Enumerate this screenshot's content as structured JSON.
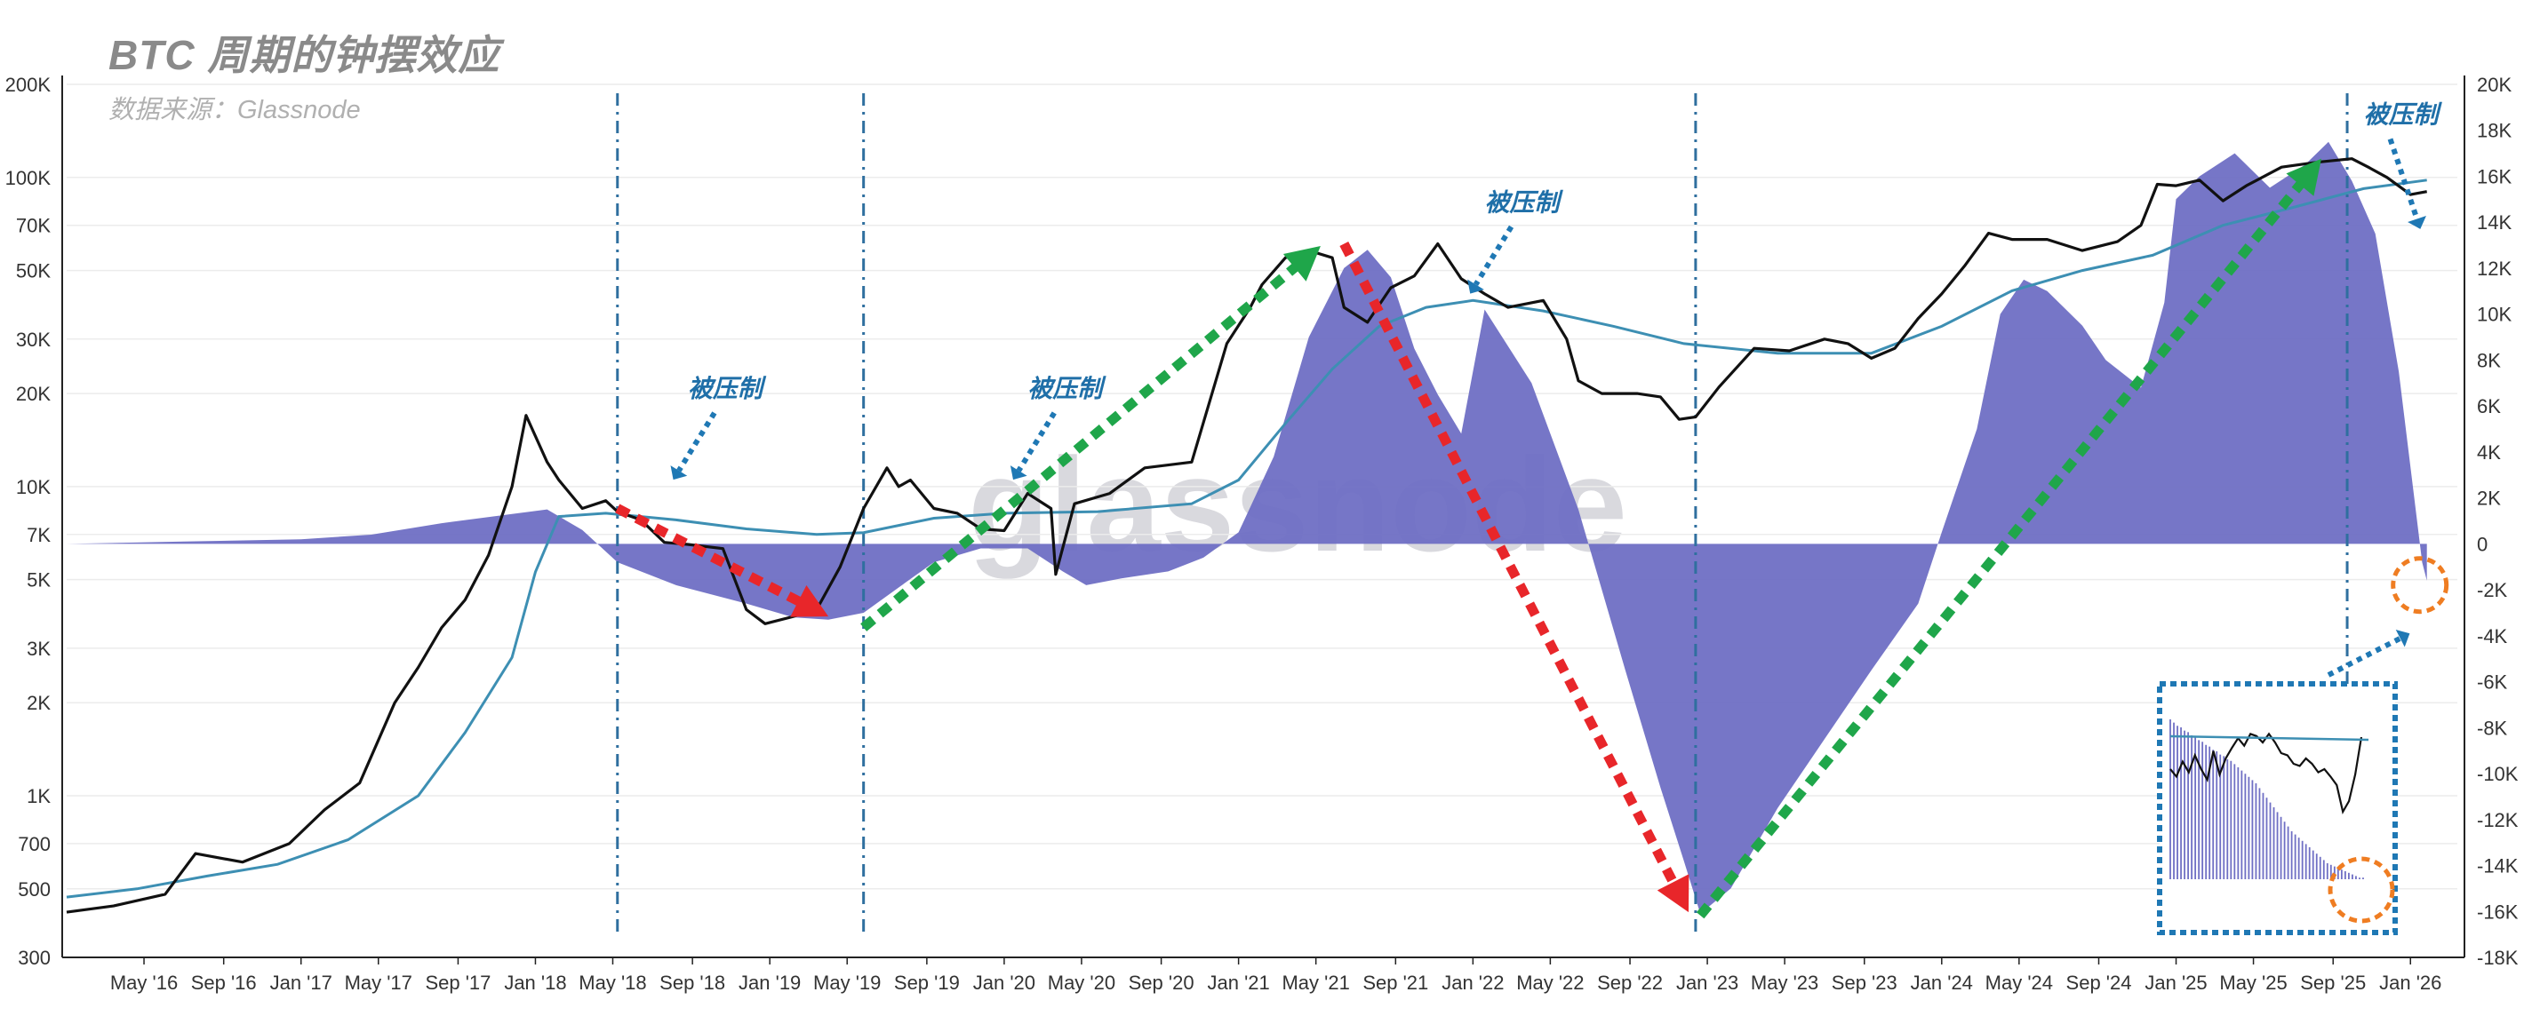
{
  "title": "BTC 周期的钟摆效应",
  "subtitle": "数据来源：Glassnode",
  "watermark": "glassnode",
  "colors": {
    "price_line": "#111111",
    "ma_line": "#3d8fb3",
    "area_fill": "#6f6fc4",
    "down_arrow": "#e8262a",
    "up_arrow": "#1fa64a",
    "annotation_arrow": "#1f78b4",
    "cycle_line": "#2f6f9f",
    "highlight_circle": "#ef7d22",
    "inset_border": "#1f78b4"
  },
  "chart_data": {
    "type": "line",
    "title": "",
    "left_axis": {
      "scale": "log",
      "range": [
        300,
        200000
      ],
      "ticks": [
        "300",
        "500",
        "700",
        "1K",
        "2K",
        "3K",
        "5K",
        "7K",
        "10K",
        "20K",
        "30K",
        "50K",
        "70K",
        "100K",
        "200K"
      ],
      "tick_values": [
        300,
        500,
        700,
        1000,
        2000,
        3000,
        5000,
        7000,
        10000,
        20000,
        30000,
        50000,
        70000,
        100000,
        200000
      ]
    },
    "right_axis": {
      "scale": "linear",
      "range": [
        -18000,
        20000
      ],
      "ticks": [
        "-18K",
        "-16K",
        "-14K",
        "-12K",
        "-10K",
        "-8K",
        "-6K",
        "-4K",
        "-2K",
        "0",
        "2K",
        "4K",
        "6K",
        "8K",
        "10K",
        "12K",
        "14K",
        "16K",
        "18K",
        "20K"
      ],
      "tick_values": [
        -18000,
        -16000,
        -14000,
        -12000,
        -10000,
        -8000,
        -6000,
        -4000,
        -2000,
        0,
        2000,
        4000,
        6000,
        8000,
        10000,
        12000,
        14000,
        16000,
        18000,
        20000
      ]
    },
    "x_axis": {
      "start": 2016.0,
      "end": 2026.2,
      "ticks": [
        "May '16",
        "Sep '16",
        "Jan '17",
        "May '17",
        "Sep '17",
        "Jan '18",
        "May '18",
        "Sep '18",
        "Jan '19",
        "May '19",
        "Sep '19",
        "Jan '20",
        "May '20",
        "Sep '20",
        "Jan '21",
        "May '21",
        "Sep '21",
        "Jan '22",
        "May '22",
        "Sep '22",
        "Jan '23",
        "May '23",
        "Sep '23",
        "Jan '24",
        "May '24",
        "Sep '24",
        "Jan '25",
        "May '25",
        "Sep '25",
        "Jan '26"
      ],
      "tick_values": [
        2016.33,
        2016.67,
        2017.0,
        2017.33,
        2017.67,
        2018.0,
        2018.33,
        2018.67,
        2019.0,
        2019.33,
        2019.67,
        2020.0,
        2020.33,
        2020.67,
        2021.0,
        2021.33,
        2021.67,
        2022.0,
        2022.33,
        2022.67,
        2023.0,
        2023.33,
        2023.67,
        2024.0,
        2024.33,
        2024.67,
        2025.0,
        2025.33,
        2025.67,
        2026.0
      ]
    },
    "series": [
      {
        "name": "",
        "axis": "left",
        "style": "price",
        "x": [
          2016.0,
          2016.2,
          2016.42,
          2016.55,
          2016.75,
          2016.95,
          2017.1,
          2017.25,
          2017.4,
          2017.5,
          2017.6,
          2017.7,
          2017.8,
          2017.9,
          2017.96,
          2018.05,
          2018.1,
          2018.2,
          2018.3,
          2018.35,
          2018.45,
          2018.55,
          2018.65,
          2018.8,
          2018.9,
          2018.98,
          2019.1,
          2019.2,
          2019.3,
          2019.4,
          2019.5,
          2019.55,
          2019.6,
          2019.7,
          2019.8,
          2019.9,
          2020.0,
          2020.1,
          2020.2,
          2020.22,
          2020.3,
          2020.45,
          2020.6,
          2020.8,
          2020.95,
          2021.05,
          2021.1,
          2021.2,
          2021.3,
          2021.4,
          2021.45,
          2021.55,
          2021.65,
          2021.75,
          2021.85,
          2021.95,
          2022.05,
          2022.15,
          2022.3,
          2022.4,
          2022.45,
          2022.55,
          2022.7,
          2022.8,
          2022.88,
          2022.95,
          2023.05,
          2023.2,
          2023.35,
          2023.5,
          2023.6,
          2023.7,
          2023.8,
          2023.9,
          2024.0,
          2024.1,
          2024.2,
          2024.3,
          2024.45,
          2024.6,
          2024.75,
          2024.85,
          2024.92,
          2025.0,
          2025.1,
          2025.2,
          2025.3,
          2025.45,
          2025.6,
          2025.75,
          2025.82,
          2025.9,
          2026.0,
          2026.07
        ],
        "y": [
          420,
          440,
          480,
          650,
          610,
          700,
          900,
          1100,
          2000,
          2600,
          3500,
          4300,
          6000,
          10000,
          17000,
          12000,
          10500,
          8500,
          9000,
          8300,
          7800,
          6600,
          6500,
          6300,
          4000,
          3600,
          3800,
          4000,
          5500,
          8500,
          11500,
          10000,
          10500,
          8500,
          8200,
          7300,
          7200,
          9500,
          8500,
          5200,
          8800,
          9500,
          11500,
          12000,
          29000,
          38000,
          45000,
          55000,
          58000,
          55000,
          38000,
          34000,
          44000,
          48000,
          61000,
          47000,
          42000,
          38000,
          40000,
          30000,
          22000,
          20000,
          20000,
          19500,
          16500,
          16800,
          21000,
          28000,
          27500,
          30000,
          29000,
          26000,
          28000,
          35000,
          42000,
          52000,
          66000,
          63000,
          63000,
          58000,
          62000,
          70000,
          95000,
          94000,
          98000,
          84000,
          94000,
          108000,
          112000,
          115000,
          108000,
          100000,
          88000,
          90000
        ]
      },
      {
        "name": "",
        "axis": "left",
        "style": "ma",
        "x": [
          2016.0,
          2016.3,
          2016.6,
          2016.9,
          2017.2,
          2017.5,
          2017.7,
          2017.9,
          2018.0,
          2018.1,
          2018.3,
          2018.6,
          2018.9,
          2019.2,
          2019.4,
          2019.7,
          2020.0,
          2020.4,
          2020.8,
          2021.0,
          2021.2,
          2021.4,
          2021.6,
          2021.8,
          2022.0,
          2022.3,
          2022.6,
          2022.9,
          2023.3,
          2023.7,
          2024.0,
          2024.3,
          2024.6,
          2024.9,
          2025.2,
          2025.5,
          2025.8,
          2026.07
        ],
        "y": [
          470,
          500,
          550,
          600,
          720,
          1000,
          1600,
          2800,
          5300,
          8000,
          8200,
          7800,
          7300,
          7000,
          7100,
          7900,
          8200,
          8300,
          8800,
          10500,
          16000,
          24000,
          33000,
          38000,
          40000,
          37000,
          33000,
          29000,
          27000,
          27000,
          33000,
          43000,
          50000,
          56000,
          70000,
          80000,
          92000,
          98000
        ]
      },
      {
        "name": "",
        "axis": "right",
        "style": "area",
        "x": [
          2016.0,
          2016.5,
          2017.0,
          2017.3,
          2017.6,
          2017.9,
          2018.05,
          2018.2,
          2018.35,
          2018.6,
          2018.9,
          2019.1,
          2019.25,
          2019.4,
          2019.55,
          2019.7,
          2019.9,
          2020.1,
          2020.25,
          2020.35,
          2020.5,
          2020.7,
          2020.85,
          2021.0,
          2021.15,
          2021.3,
          2021.45,
          2021.55,
          2021.65,
          2021.75,
          2021.85,
          2021.95,
          2022.05,
          2022.25,
          2022.45,
          2022.65,
          2022.8,
          2022.9,
          2022.97,
          2023.1,
          2023.3,
          2023.5,
          2023.7,
          2023.9,
          2024.0,
          2024.15,
          2024.25,
          2024.35,
          2024.45,
          2024.6,
          2024.7,
          2024.8,
          2024.85,
          2024.95,
          2025.0,
          2025.1,
          2025.25,
          2025.4,
          2025.55,
          2025.65,
          2025.75,
          2025.85,
          2025.95,
          2026.05,
          2026.07
        ],
        "y": [
          0,
          100,
          200,
          400,
          900,
          1300,
          1500,
          600,
          -800,
          -1800,
          -2600,
          -3200,
          -3300,
          -3000,
          -1900,
          -800,
          -200,
          -200,
          -1200,
          -1800,
          -1500,
          -1200,
          -600,
          500,
          3800,
          9000,
          12000,
          12800,
          11600,
          8500,
          6500,
          4800,
          10200,
          7000,
          1500,
          -5500,
          -10600,
          -13800,
          -16100,
          -15000,
          -11500,
          -8500,
          -5500,
          -2600,
          500,
          5000,
          10000,
          11500,
          11000,
          9500,
          8000,
          7200,
          6800,
          10500,
          15000,
          16000,
          17000,
          15500,
          16500,
          17500,
          15800,
          13500,
          7500,
          -800,
          -1600
        ]
      },
      {
        "name": "",
        "axis": "inset",
        "style": "inset-bars",
        "x": [
          0,
          1,
          2,
          3,
          4,
          5,
          6,
          7,
          8,
          9,
          10,
          11,
          12,
          13,
          14,
          15,
          16,
          17,
          18,
          19,
          20,
          21,
          22,
          23,
          24,
          25,
          26,
          27,
          28,
          29,
          30,
          31,
          32,
          33,
          34,
          35,
          36,
          37,
          38,
          39,
          40,
          41,
          42,
          43,
          44,
          45,
          46,
          47,
          48,
          49,
          50,
          51,
          52,
          53,
          54,
          55
        ],
        "y": [
          100,
          98,
          96,
          95,
          93,
          92,
          90,
          89,
          87,
          86,
          84,
          83,
          81,
          80,
          78,
          77,
          75,
          74,
          72,
          70,
          68,
          66,
          64,
          62,
          60,
          57,
          54,
          51,
          48,
          45,
          42,
          39,
          36,
          33,
          30,
          28,
          26,
          24,
          22,
          20,
          18,
          16,
          14,
          12,
          10,
          9,
          8,
          7,
          6,
          5,
          4,
          3,
          2,
          1,
          1,
          0
        ]
      }
    ],
    "inset": {
      "price_profile": [
        0.45,
        0.38,
        0.52,
        0.42,
        0.58,
        0.45,
        0.35,
        0.62,
        0.4,
        0.55,
        0.65,
        0.74,
        0.67,
        0.78,
        0.76,
        0.7,
        0.78,
        0.7,
        0.6,
        0.58,
        0.5,
        0.48,
        0.55,
        0.5,
        0.42,
        0.45,
        0.38,
        0.3,
        0.05,
        0.15,
        0.4,
        0.75
      ],
      "ma_level": 0.05
    },
    "cycle_markers": [
      2018.35,
      2019.4,
      2022.95,
      2025.73
    ],
    "arrows": [
      {
        "kind": "down",
        "from": [
          2018.35,
          8500
        ],
        "to": [
          2019.25,
          3800
        ]
      },
      {
        "kind": "up",
        "from": [
          2019.4,
          3500
        ],
        "to": [
          2021.35,
          60000
        ]
      },
      {
        "kind": "down",
        "from": [
          2021.45,
          61000
        ],
        "to": [
          2022.92,
          420
        ]
      },
      {
        "kind": "up",
        "from": [
          2022.97,
          410
        ],
        "to": [
          2025.62,
          115000
        ]
      }
    ],
    "annotations": [
      {
        "text": "被压制",
        "x": 2018.65,
        "y": 19500
      },
      {
        "text": "被压制",
        "x": 2020.1,
        "y": 19500
      },
      {
        "text": "被压制",
        "x": 2022.05,
        "y": 78000
      },
      {
        "text": "被压制",
        "x": 2025.8,
        "y": 150000
      }
    ],
    "grid": "horizontal",
    "legend": "none"
  }
}
